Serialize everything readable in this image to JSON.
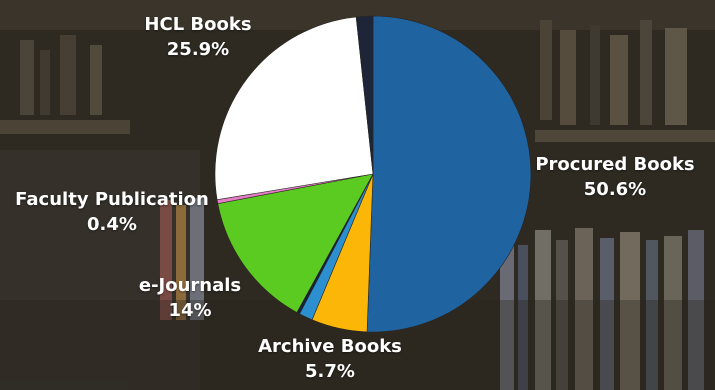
{
  "chart_data": {
    "type": "pie",
    "title": "",
    "slices": [
      {
        "label": "Procured Books",
        "value": 50.6,
        "value_text": "50.6%",
        "color": "#1f63a0"
      },
      {
        "label": "Archive Books",
        "value": 5.7,
        "value_text": "5.7%",
        "color": "#fcb608"
      },
      {
        "label": "",
        "value": 1.4,
        "value_text": "",
        "color": "#2b8fd0"
      },
      {
        "label": "",
        "value": 0.3,
        "value_text": "",
        "color": "#16213a"
      },
      {
        "label": "e-Journals",
        "value": 14,
        "value_text": "14%",
        "color": "#5ccb21"
      },
      {
        "label": "Faculty Publication",
        "value": 0.4,
        "value_text": "0.4%",
        "color": "#e47cc7"
      },
      {
        "label": "HCL Books",
        "value": 25.9,
        "value_text": "25.9%",
        "color": "#ffffff"
      },
      {
        "label": "",
        "value": 1.7,
        "value_text": "",
        "color": "#1e2538"
      }
    ]
  },
  "colors": {
    "background": "#2e2a22",
    "label_text": "#ffffff"
  }
}
